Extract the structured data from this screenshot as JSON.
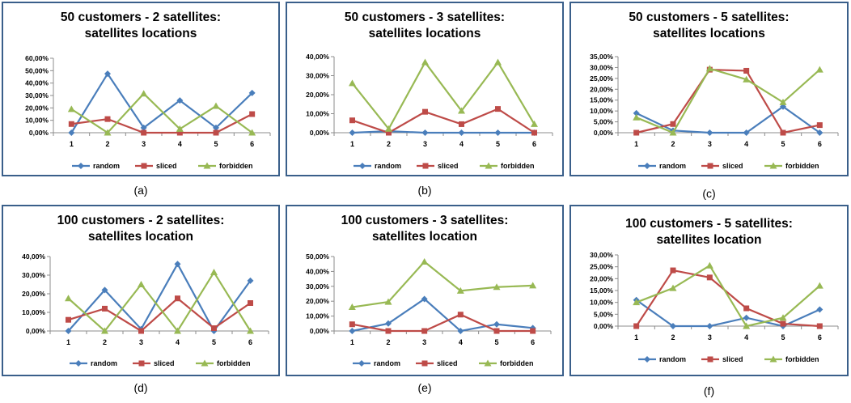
{
  "figure": {
    "charts": [
      {
        "caption": "(a)",
        "title_line1": "50 customers - 2 satellites:",
        "title_line2": "satellites locations"
      },
      {
        "caption": "(b)",
        "title_line1": "50 customers - 3 satellites:",
        "title_line2": "satellites locations"
      },
      {
        "caption": "(c)",
        "title_line1": "50 customers - 5 satellites:",
        "title_line2": "satellites locations"
      },
      {
        "caption": "(d)",
        "title_line1": "100 customers - 2 satellites:",
        "title_line2": "satellites location"
      },
      {
        "caption": "(e)",
        "title_line1": "100 customers - 3 satellites:",
        "title_line2": "satellites location"
      },
      {
        "caption": "(f)",
        "title_line1": "100 customers - 5 satellites:",
        "title_line2": "satellites location"
      }
    ]
  },
  "colors": {
    "random": "#4a7ebb",
    "sliced": "#be4b48",
    "forbidden": "#98b954",
    "frame": "#3a5f8a"
  },
  "chart_data": [
    {
      "type": "line",
      "title": "50 customers - 2 satellites: satellites locations",
      "categories": [
        "1",
        "2",
        "3",
        "4",
        "5",
        "6"
      ],
      "yticks": [
        "0,00%",
        "10,00%",
        "20,00%",
        "30,00%",
        "40,00%",
        "50,00%",
        "60,00%"
      ],
      "ylim": [
        0,
        60
      ],
      "legend": "bottom",
      "series": [
        {
          "name": "random",
          "marker": "diamond",
          "values": [
            0,
            47.5,
            4,
            26,
            4,
            32
          ]
        },
        {
          "name": "sliced",
          "marker": "square",
          "values": [
            7,
            11,
            0,
            0,
            0,
            15
          ]
        },
        {
          "name": "forbidden",
          "marker": "triangle",
          "values": [
            19,
            0,
            31.5,
            3,
            21.5,
            0
          ]
        }
      ]
    },
    {
      "type": "line",
      "title": "50 customers - 3 satellites: satellites locations",
      "categories": [
        "1",
        "2",
        "3",
        "4",
        "5",
        "6"
      ],
      "yticks": [
        "0,00%",
        "10,00%",
        "20,00%",
        "30,00%",
        "40,00%"
      ],
      "ylim": [
        0,
        40
      ],
      "legend": "bottom",
      "series": [
        {
          "name": "random",
          "marker": "diamond",
          "values": [
            0,
            0.8,
            0,
            0,
            0,
            0
          ]
        },
        {
          "name": "sliced",
          "marker": "square",
          "values": [
            6.5,
            0,
            11,
            4.5,
            12.5,
            0
          ]
        },
        {
          "name": "forbidden",
          "marker": "triangle",
          "values": [
            26,
            2,
            37,
            11.5,
            37,
            4.5
          ]
        }
      ]
    },
    {
      "type": "line",
      "title": "50 customers - 5 satellites: satellites locations",
      "categories": [
        "1",
        "2",
        "3",
        "4",
        "5",
        "6"
      ],
      "yticks": [
        "0,00%",
        "5,00%",
        "10,00%",
        "15,00%",
        "20,00%",
        "25,00%",
        "30,00%",
        "35,00%"
      ],
      "ylim": [
        0,
        35
      ],
      "legend": "bottom",
      "series": [
        {
          "name": "random",
          "marker": "diamond",
          "values": [
            9,
            1,
            0,
            0,
            12,
            0
          ]
        },
        {
          "name": "sliced",
          "marker": "square",
          "values": [
            0,
            4,
            29,
            28.5,
            0,
            3.5
          ]
        },
        {
          "name": "forbidden",
          "marker": "triangle",
          "values": [
            7,
            0,
            29.5,
            24.5,
            14,
            29
          ]
        }
      ]
    },
    {
      "type": "line",
      "title": "100 customers - 2 satellites: satellites location",
      "categories": [
        "1",
        "2",
        "3",
        "4",
        "5",
        "6"
      ],
      "yticks": [
        "0,00%",
        "10,00%",
        "20,00%",
        "30,00%",
        "40,00%"
      ],
      "ylim": [
        0,
        40
      ],
      "legend": "bottom",
      "series": [
        {
          "name": "random",
          "marker": "diamond",
          "values": [
            0,
            22,
            1,
            36,
            0,
            27
          ]
        },
        {
          "name": "sliced",
          "marker": "square",
          "values": [
            6,
            12,
            0,
            17.5,
            1.5,
            15
          ]
        },
        {
          "name": "forbidden",
          "marker": "triangle",
          "values": [
            17.5,
            0,
            25,
            0,
            31.5,
            0
          ]
        }
      ]
    },
    {
      "type": "line",
      "title": "100 customers - 3 satellites: satellites location",
      "categories": [
        "1",
        "2",
        "3",
        "4",
        "5",
        "6"
      ],
      "yticks": [
        "0,00%",
        "10,00%",
        "20,00%",
        "30,00%",
        "40,00%",
        "50,00%"
      ],
      "ylim": [
        0,
        50
      ],
      "legend": "bottom",
      "series": [
        {
          "name": "random",
          "marker": "diamond",
          "values": [
            0,
            5,
            21.5,
            0,
            4.5,
            2
          ]
        },
        {
          "name": "sliced",
          "marker": "square",
          "values": [
            4.5,
            0,
            0,
            11,
            0,
            0
          ]
        },
        {
          "name": "forbidden",
          "marker": "triangle",
          "values": [
            16,
            19.5,
            46.5,
            27,
            29.5,
            30.5
          ]
        }
      ]
    },
    {
      "type": "line",
      "title": "100 customers - 5 satellites: satellites location",
      "categories": [
        "1",
        "2",
        "3",
        "4",
        "5",
        "6"
      ],
      "yticks": [
        "0,00%",
        "5,00%",
        "10,00%",
        "15,00%",
        "20,00%",
        "25,00%",
        "30,00%"
      ],
      "ylim": [
        0,
        30
      ],
      "legend": "bottom",
      "series": [
        {
          "name": "random",
          "marker": "diamond",
          "values": [
            11,
            0,
            0,
            3.5,
            0,
            7
          ]
        },
        {
          "name": "sliced",
          "marker": "square",
          "values": [
            0,
            23.5,
            20.5,
            7.5,
            1,
            0
          ]
        },
        {
          "name": "forbidden",
          "marker": "triangle",
          "values": [
            10,
            16,
            25.5,
            0,
            3.5,
            17
          ]
        }
      ]
    }
  ]
}
